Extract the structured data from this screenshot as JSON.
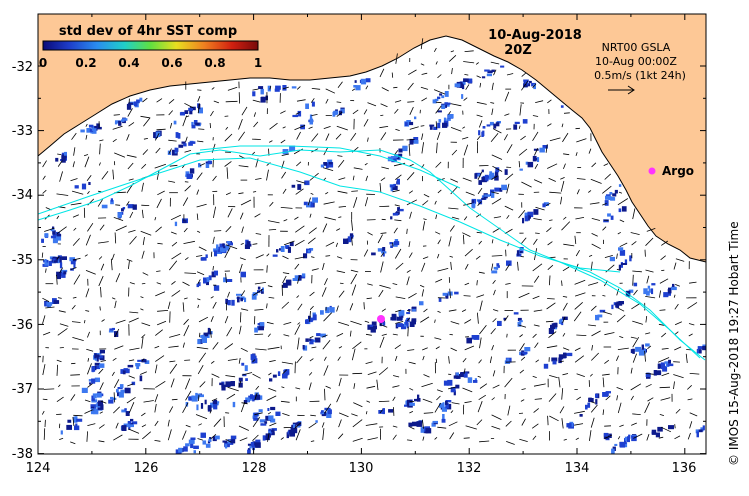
{
  "colorbar": {
    "title": "std dev of 4hr SST comp",
    "ticks": [
      "0",
      "0.2",
      "0.4",
      "0.6",
      "0.8",
      "1"
    ],
    "gradient": [
      "#0a0a78",
      "#1e3cc8",
      "#2a8cf0",
      "#20d0c8",
      "#60e040",
      "#e8e020",
      "#f08020",
      "#d02010",
      "#780a0a"
    ]
  },
  "header": {
    "date": "10-Aug-2018",
    "time": "20Z"
  },
  "legend": {
    "line1": "NRT00 GSLA",
    "line2": "10-Aug 00:00Z",
    "line3": "0.5m/s (1kt 24h)"
  },
  "argo": {
    "label": "Argo",
    "color": "#ff33ff"
  },
  "axes": {
    "x_ticks": [
      "124",
      "126",
      "128",
      "130",
      "132",
      "134",
      "136"
    ],
    "y_ticks": [
      "-32",
      "-33",
      "-34",
      "-35",
      "-36",
      "-37",
      "-38"
    ]
  },
  "credit": "© IMOS 15-Aug-2018 19:27 Hobart Time",
  "colors": {
    "land": "#fdc896",
    "ocean": "#ffffff",
    "track": "#00e5e5",
    "patch_dark": "#0d1a8c",
    "patch_mid": "#1e40d0",
    "patch_light": "#3c78f0"
  }
}
